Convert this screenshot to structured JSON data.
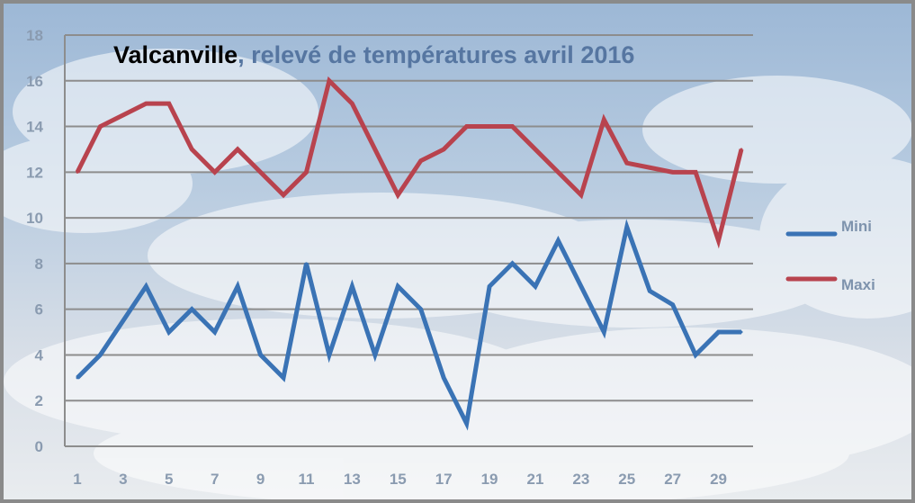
{
  "chart_data": {
    "type": "line",
    "title_place": "Valcanville",
    "title_rest": ", relevé de températures avril 2016",
    "x": [
      1,
      2,
      3,
      4,
      5,
      6,
      7,
      8,
      9,
      10,
      11,
      12,
      13,
      14,
      15,
      16,
      17,
      18,
      19,
      20,
      21,
      22,
      23,
      24,
      25,
      26,
      27,
      28,
      29,
      30
    ],
    "x_tick_labels": [
      "1",
      "3",
      "5",
      "7",
      "9",
      "11",
      "13",
      "15",
      "17",
      "19",
      "21",
      "23",
      "25",
      "27",
      "29"
    ],
    "y_tick_labels": [
      "0",
      "2",
      "4",
      "6",
      "8",
      "10",
      "12",
      "14",
      "16",
      "18"
    ],
    "ylim": [
      0,
      18
    ],
    "xlim": [
      1,
      30
    ],
    "grid": "horizontal",
    "legend_position": "right",
    "series": [
      {
        "name": "Mini",
        "color": "#3a73b5",
        "values": [
          3,
          4,
          5.5,
          7,
          5,
          6,
          5,
          7,
          4,
          3,
          8,
          4,
          7,
          4,
          7,
          6,
          3,
          1,
          7,
          8,
          7,
          9,
          7,
          5,
          9.6,
          6.8,
          6.2,
          4,
          5,
          5
        ]
      },
      {
        "name": "Maxi",
        "color": "#b8434e",
        "values": [
          12,
          14,
          14.5,
          15,
          15,
          13,
          12,
          13,
          12,
          11,
          12,
          16,
          15,
          13,
          11,
          12.5,
          13,
          14,
          14,
          14,
          13,
          12,
          11,
          14.3,
          12.4,
          12.2,
          12,
          12,
          9,
          13
        ]
      }
    ]
  }
}
